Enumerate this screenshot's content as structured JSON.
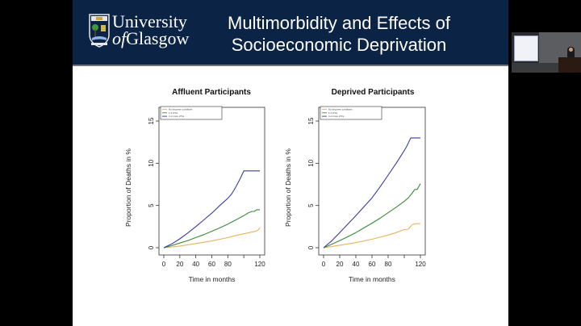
{
  "slide": {
    "title_line1": "Multimorbidity and Effects of",
    "title_line2": "Socioeconomic Deprivation",
    "logo": {
      "line1": "University",
      "line2_of": "of",
      "line2_rest": "Glasgow"
    },
    "colors": {
      "header_bg": "#0b2446",
      "no_ltc": "#e8b35a",
      "ltc_1_3": "#3b8a3a",
      "ltc_4plus": "#3a3aa6"
    }
  },
  "chart_data": [
    {
      "type": "line",
      "title": "Affluent Participants",
      "xlabel": "Time in months",
      "ylabel": "Proportion of Deaths in %",
      "xlim": [
        0,
        120
      ],
      "ylim": [
        0,
        15
      ],
      "xticks": [
        0,
        20,
        40,
        60,
        80,
        100,
        120
      ],
      "xtick_labels": [
        "0",
        "20",
        "40",
        "60",
        "80",
        "",
        "120"
      ],
      "yticks": [
        0,
        5,
        10,
        15
      ],
      "ytick_labels": [
        "0",
        "5",
        "10",
        "15"
      ],
      "legend_position": "top-left",
      "series": [
        {
          "name": "No long term conditions",
          "color": "#e8b35a",
          "x": [
            0,
            10,
            20,
            30,
            40,
            50,
            60,
            70,
            80,
            90,
            100,
            110,
            115,
            118,
            120
          ],
          "y": [
            0,
            0.1,
            0.2,
            0.35,
            0.5,
            0.65,
            0.8,
            1.0,
            1.2,
            1.45,
            1.65,
            1.85,
            1.95,
            2.1,
            2.4
          ]
        },
        {
          "name": "1-3 LTCs",
          "color": "#3b8a3a",
          "x": [
            0,
            10,
            20,
            30,
            40,
            50,
            60,
            70,
            80,
            90,
            100,
            105,
            110,
            113,
            116,
            120
          ],
          "y": [
            0,
            0.25,
            0.55,
            0.85,
            1.2,
            1.55,
            1.95,
            2.35,
            2.8,
            3.3,
            3.8,
            4.1,
            4.3,
            4.3,
            4.5,
            4.5
          ]
        },
        {
          "name": "4 or more LTCs",
          "color": "#3a3aa6",
          "x": [
            0,
            10,
            20,
            30,
            40,
            50,
            60,
            70,
            80,
            85,
            90,
            95,
            100,
            105,
            110,
            120
          ],
          "y": [
            0,
            0.45,
            1.05,
            1.75,
            2.5,
            3.3,
            4.1,
            5.0,
            5.85,
            6.4,
            7.2,
            8.1,
            9.1,
            9.1,
            9.1,
            9.1
          ]
        }
      ]
    },
    {
      "type": "line",
      "title": "Deprived Participants",
      "xlabel": "Time in months",
      "ylabel": "Proportion of Deaths in %",
      "xlim": [
        0,
        120
      ],
      "ylim": [
        0,
        15
      ],
      "xticks": [
        0,
        20,
        40,
        60,
        80,
        100,
        120
      ],
      "xtick_labels": [
        "0",
        "20",
        "40",
        "60",
        "80",
        "",
        "120"
      ],
      "yticks": [
        0,
        5,
        10,
        15
      ],
      "ytick_labels": [
        "0",
        "5",
        "10",
        "15"
      ],
      "legend_position": "top-left",
      "series": [
        {
          "name": "No long term conditions",
          "color": "#e8b35a",
          "x": [
            0,
            10,
            20,
            30,
            40,
            50,
            60,
            70,
            80,
            90,
            100,
            105,
            110,
            115,
            120
          ],
          "y": [
            0,
            0.15,
            0.3,
            0.45,
            0.6,
            0.8,
            1.0,
            1.25,
            1.5,
            1.8,
            2.15,
            2.2,
            2.75,
            2.85,
            2.85
          ]
        },
        {
          "name": "1-3 LTCs",
          "color": "#3b8a3a",
          "x": [
            0,
            10,
            20,
            30,
            40,
            50,
            60,
            70,
            80,
            90,
            100,
            105,
            110,
            113,
            116,
            120
          ],
          "y": [
            0,
            0.4,
            0.85,
            1.3,
            1.8,
            2.35,
            2.9,
            3.5,
            4.15,
            4.8,
            5.5,
            5.9,
            6.5,
            6.9,
            6.9,
            7.6
          ]
        },
        {
          "name": "4 or more LTCs",
          "color": "#3a3aa6",
          "x": [
            0,
            10,
            20,
            30,
            40,
            50,
            60,
            70,
            80,
            90,
            100,
            103,
            105,
            108,
            120
          ],
          "y": [
            0,
            0.8,
            1.8,
            2.8,
            3.8,
            4.85,
            5.9,
            7.2,
            8.6,
            10.0,
            11.5,
            12.0,
            12.4,
            13.0,
            13.0
          ]
        }
      ]
    }
  ]
}
